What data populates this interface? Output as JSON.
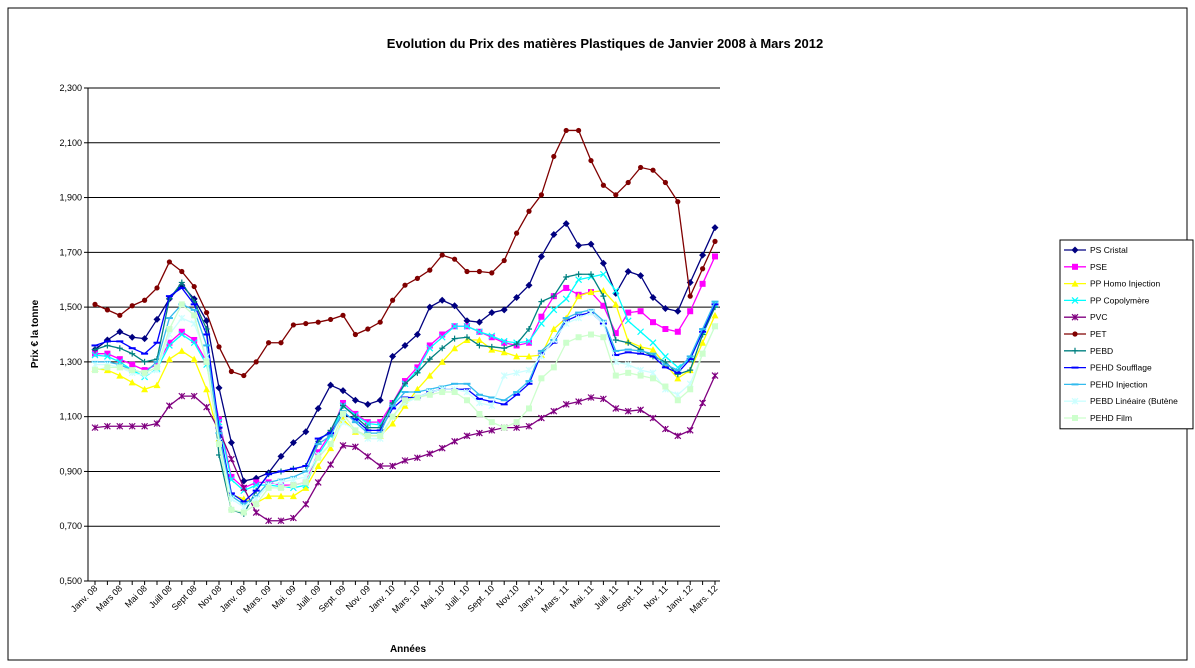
{
  "chart_data": {
    "type": "line",
    "title": "Evolution du Prix des matières Plastiques de Janvier 2008 à Mars 2012",
    "x_label": "Années",
    "y_label": "Prix € la tonne",
    "categories": [
      "Janv. 08",
      null,
      "Mars 08",
      null,
      "Mai 08",
      null,
      "Juill 08",
      null,
      "Sept 08",
      null,
      "Nov 08",
      null,
      "Janv. 09",
      null,
      "Mars. 09",
      null,
      "Mai. 09",
      null,
      "Juill. 09",
      null,
      "Sept. 09",
      null,
      "Nov. 09",
      null,
      "Janv. 10",
      null,
      "Mars. 10",
      null,
      "Mai. 10",
      null,
      "Juill. 10",
      null,
      "Sept. 10",
      null,
      "Nov.10",
      null,
      "Janv. 11",
      null,
      "Mars. 11",
      null,
      "Mai. 11",
      null,
      "Juill. 11",
      null,
      "Sept. 11",
      null,
      "Nov. 11",
      null,
      "Janv. 12",
      null,
      "Mars. 12"
    ],
    "ylim": [
      500,
      2300
    ],
    "yticks": [
      {
        "value": 500,
        "label": "0,500"
      },
      {
        "value": 700,
        "label": "0,700"
      },
      {
        "value": 900,
        "label": "0,900"
      },
      {
        "value": 1100,
        "label": "1,100"
      },
      {
        "value": 1300,
        "label": "1,300"
      },
      {
        "value": 1500,
        "label": "1,500"
      },
      {
        "value": 1700,
        "label": "1,700"
      },
      {
        "value": 1900,
        "label": "1,900"
      },
      {
        "value": 2100,
        "label": "2,100"
      },
      {
        "value": 2300,
        "label": "2,300"
      }
    ],
    "grid": true,
    "legend": "right",
    "series": [
      {
        "name": "PS Cristal",
        "color": "#000080",
        "marker": "diamond",
        "values": [
          1345,
          1380,
          1410,
          1390,
          1385,
          1455,
          1530,
          1580,
          1530,
          1450,
          1205,
          1005,
          865,
          875,
          895,
          955,
          1005,
          1045,
          1130,
          1215,
          1195,
          1160,
          1145,
          1160,
          1320,
          1360,
          1400,
          1500,
          1525,
          1505,
          1450,
          1445,
          1480,
          1490,
          1535,
          1580,
          1685,
          1765,
          1805,
          1725,
          1730,
          1660,
          1550,
          1630,
          1615,
          1535,
          1495,
          1485,
          1590,
          1690,
          1790
        ]
      },
      {
        "name": "PSE",
        "color": "#ff00ff",
        "marker": "square",
        "values": [
          1330,
          1330,
          1310,
          1290,
          1270,
          1290,
          1370,
          1410,
          1380,
          1300,
          1090,
          880,
          840,
          860,
          860,
          850,
          850,
          860,
          970,
          1040,
          1150,
          1110,
          1080,
          1080,
          1150,
          1230,
          1280,
          1360,
          1400,
          1430,
          1430,
          1410,
          1390,
          1370,
          1360,
          1370,
          1465,
          1540,
          1570,
          1545,
          1555,
          1505,
          1405,
          1480,
          1485,
          1445,
          1420,
          1410,
          1485,
          1585,
          1685
        ]
      },
      {
        "name": "PP Homo Injection",
        "color": "#ffff00",
        "marker": "triangle",
        "values": [
          1275,
          1270,
          1250,
          1225,
          1200,
          1215,
          1310,
          1340,
          1310,
          1200,
          1020,
          815,
          800,
          785,
          810,
          810,
          810,
          840,
          920,
          985,
          1090,
          1045,
          1030,
          1030,
          1075,
          1140,
          1200,
          1250,
          1300,
          1350,
          1380,
          1380,
          1345,
          1335,
          1320,
          1320,
          1325,
          1420,
          1460,
          1540,
          1555,
          1560,
          1510,
          1375,
          1355,
          1345,
          1290,
          1240,
          1270,
          1370,
          1470
        ]
      },
      {
        "name": "PP Copolymère",
        "color": "#00ffff",
        "marker": "x",
        "values": [
          1325,
          1320,
          1300,
          1270,
          1245,
          1275,
          1360,
          1400,
          1370,
          1290,
          1080,
          870,
          830,
          850,
          850,
          845,
          840,
          850,
          960,
          1030,
          1140,
          1105,
          1075,
          1070,
          1140,
          1220,
          1270,
          1350,
          1390,
          1430,
          1430,
          1410,
          1395,
          1375,
          1370,
          1375,
          1440,
          1490,
          1530,
          1600,
          1610,
          1620,
          1560,
          1450,
          1410,
          1370,
          1320,
          1280,
          1310,
          1410,
          1510
        ]
      },
      {
        "name": "PVC",
        "color": "#800080",
        "marker": "star",
        "values": [
          1060,
          1065,
          1065,
          1065,
          1065,
          1075,
          1140,
          1175,
          1175,
          1135,
          1050,
          945,
          840,
          750,
          720,
          720,
          730,
          780,
          860,
          925,
          995,
          990,
          955,
          920,
          920,
          940,
          950,
          965,
          985,
          1010,
          1030,
          1040,
          1050,
          1060,
          1060,
          1065,
          1095,
          1120,
          1145,
          1155,
          1170,
          1165,
          1130,
          1120,
          1125,
          1095,
          1055,
          1030,
          1050,
          1150,
          1250
        ]
      },
      {
        "name": "PET",
        "color": "#800000",
        "marker": "circle",
        "values": [
          1510,
          1490,
          1470,
          1505,
          1525,
          1570,
          1665,
          1630,
          1575,
          1480,
          1355,
          1265,
          1250,
          1300,
          1370,
          1370,
          1435,
          1440,
          1445,
          1455,
          1470,
          1400,
          1420,
          1445,
          1525,
          1580,
          1605,
          1635,
          1690,
          1675,
          1630,
          1630,
          1625,
          1670,
          1770,
          1850,
          1910,
          2050,
          2145,
          2145,
          2035,
          1945,
          1910,
          1955,
          2010,
          2000,
          1955,
          1885,
          1540,
          1640,
          1740
        ]
      },
      {
        "name": "PEBD",
        "color": "#008080",
        "marker": "plus",
        "values": [
          1345,
          1360,
          1350,
          1330,
          1300,
          1310,
          1530,
          1590,
          1520,
          1420,
          960,
          760,
          745,
          830,
          890,
          900,
          910,
          920,
          1010,
          1050,
          1140,
          1100,
          1060,
          1060,
          1150,
          1220,
          1260,
          1310,
          1350,
          1385,
          1390,
          1360,
          1355,
          1350,
          1365,
          1420,
          1520,
          1540,
          1610,
          1620,
          1620,
          1540,
          1380,
          1370,
          1345,
          1320,
          1300,
          1255,
          1270,
          1400,
          1500
        ]
      },
      {
        "name": "PEHD Soufflage",
        "color": "#0000ff",
        "marker": "dash",
        "values": [
          1360,
          1375,
          1375,
          1350,
          1330,
          1370,
          1540,
          1570,
          1510,
          1400,
          1060,
          820,
          790,
          830,
          890,
          900,
          910,
          920,
          1020,
          1040,
          1110,
          1090,
          1050,
          1050,
          1130,
          1170,
          1170,
          1190,
          1200,
          1200,
          1200,
          1165,
          1155,
          1145,
          1180,
          1220,
          1330,
          1370,
          1450,
          1470,
          1480,
          1440,
          1325,
          1335,
          1330,
          1320,
          1280,
          1260,
          1310,
          1410,
          1510
        ]
      },
      {
        "name": "PEHD Injection",
        "color": "#33bbee",
        "marker": "dash",
        "values": [
          1300,
          1300,
          1290,
          1270,
          1260,
          1300,
          1460,
          1510,
          1490,
          1360,
          1040,
          810,
          780,
          810,
          860,
          870,
          880,
          900,
          1000,
          1030,
          1120,
          1080,
          1040,
          1040,
          1140,
          1190,
          1190,
          1200,
          1210,
          1220,
          1220,
          1180,
          1170,
          1160,
          1190,
          1230,
          1340,
          1380,
          1460,
          1480,
          1490,
          1450,
          1340,
          1345,
          1340,
          1330,
          1290,
          1270,
          1320,
          1420,
          1520
        ]
      },
      {
        "name": "PEBD Linéaire (Butène",
        "color": "#ccffff",
        "marker": "star",
        "values": [
          1290,
          1290,
          1280,
          1260,
          1250,
          1270,
          1400,
          1460,
          1440,
          1320,
          1010,
          800,
          770,
          800,
          850,
          860,
          870,
          880,
          960,
          1000,
          1080,
          1050,
          1020,
          1020,
          1100,
          1150,
          1170,
          1190,
          1200,
          1200,
          1190,
          1150,
          1140,
          1250,
          1260,
          1270,
          1320,
          1380,
          1440,
          1460,
          1480,
          1440,
          1300,
          1290,
          1270,
          1260,
          1200,
          1180,
          1220,
          1330,
          1430
        ]
      },
      {
        "name": "PEHD Film",
        "color": "#ccffcc",
        "marker": "square",
        "values": [
          1270,
          1280,
          1280,
          1270,
          1260,
          1280,
          1420,
          1510,
          1470,
          1300,
          1000,
          760,
          750,
          780,
          840,
          840,
          850,
          860,
          950,
          1000,
          1110,
          1050,
          1030,
          1030,
          1100,
          1160,
          1170,
          1180,
          1190,
          1190,
          1160,
          1110,
          1080,
          1060,
          1080,
          1130,
          1240,
          1280,
          1370,
          1390,
          1400,
          1390,
          1250,
          1260,
          1250,
          1240,
          1210,
          1160,
          1200,
          1330,
          1430
        ]
      }
    ]
  }
}
